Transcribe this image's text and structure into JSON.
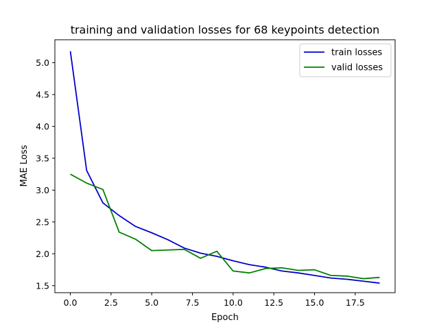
{
  "chart_data": {
    "type": "line",
    "title": "training and validation losses for 68 keypoints detection",
    "xlabel": "Epoch",
    "ylabel": "MAE Loss",
    "x": [
      0,
      1,
      2,
      3,
      4,
      5,
      6,
      7,
      8,
      9,
      10,
      11,
      12,
      13,
      14,
      15,
      16,
      17,
      18,
      19
    ],
    "xlim": [
      -0.95,
      19.95
    ],
    "ylim": [
      1.39,
      5.36
    ],
    "xticks": [
      0,
      2.5,
      5,
      7.5,
      10,
      12.5,
      15,
      17.5
    ],
    "xtick_labels": [
      "0.0",
      "2.5",
      "5.0",
      "7.5",
      "10.0",
      "12.5",
      "15.0",
      "17.5"
    ],
    "yticks": [
      1.5,
      2.0,
      2.5,
      3.0,
      3.5,
      4.0,
      4.5,
      5.0
    ],
    "ytick_labels": [
      "1.5",
      "2.0",
      "2.5",
      "3.0",
      "3.5",
      "4.0",
      "4.5",
      "5.0"
    ],
    "grid": false,
    "legend_position": "upper right",
    "series": [
      {
        "name": "train losses",
        "color": "#0000cc",
        "values": [
          5.18,
          3.31,
          2.8,
          2.6,
          2.43,
          2.33,
          2.22,
          2.09,
          2.01,
          1.96,
          1.89,
          1.83,
          1.79,
          1.73,
          1.7,
          1.66,
          1.62,
          1.6,
          1.57,
          1.54
        ]
      },
      {
        "name": "valid losses",
        "color": "#008000",
        "values": [
          3.25,
          3.11,
          3.01,
          2.34,
          2.23,
          2.05,
          2.06,
          2.07,
          1.93,
          2.04,
          1.73,
          1.7,
          1.77,
          1.78,
          1.74,
          1.75,
          1.66,
          1.65,
          1.61,
          1.63
        ]
      }
    ]
  }
}
